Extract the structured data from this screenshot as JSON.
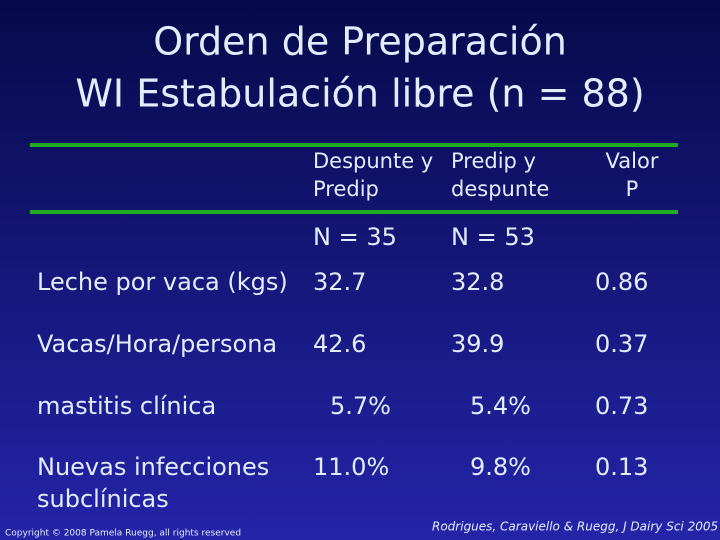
{
  "header": {
    "title": [
      "Orden de Preparación",
      "WI Estabulación libre (n = 88)"
    ]
  },
  "table": {
    "columns": [
      [
        "Despunte y",
        "Predip"
      ],
      [
        "Predip y",
        "despunte"
      ],
      [
        "Valor",
        "P"
      ]
    ],
    "n_row": [
      "N = 35",
      "N = 53"
    ],
    "rows": [
      {
        "label": [
          "Leche por vaca (kgs)"
        ],
        "values": [
          "32.7",
          "32.8",
          "0.86"
        ]
      },
      {
        "label": [
          "Vacas/Hora/persona"
        ],
        "values": [
          "42.6",
          "39.9",
          "0.37"
        ]
      },
      {
        "label": [
          "mastitis clínica"
        ],
        "values": [
          "5.7%",
          "5.4%",
          "0.73"
        ]
      },
      {
        "label": [
          "Nuevas infecciones",
          "subclínicas"
        ],
        "values": [
          "11.0%",
          "9.8%",
          "0.13"
        ]
      }
    ]
  },
  "footer": {
    "copyright": "Copyright © 2008 Pamela Ruegg, all rights reserved",
    "citation": "Rodrigues, Caraviello & Ruegg, J Dairy Sci 2005"
  }
}
